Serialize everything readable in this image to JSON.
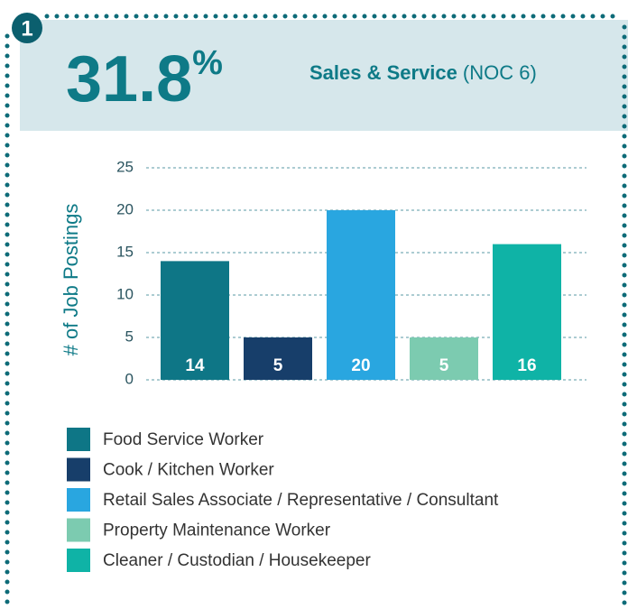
{
  "header": {
    "badge": "1",
    "value": "31.8",
    "unit": "%",
    "title": "Sales & Service",
    "code": "(NOC 6)"
  },
  "chart_data": {
    "type": "bar",
    "ylabel": "# of Job Postings",
    "categories": [
      "Food Service Worker",
      "Cook / Kitchen Worker",
      "Retail Sales Associate / Representative / Consultant",
      "Property Maintenance Worker",
      "Cleaner / Custodian / Housekeeper"
    ],
    "values": [
      14,
      5,
      20,
      5,
      16
    ],
    "colors": [
      "#0e7686",
      "#173e6a",
      "#29a6e0",
      "#7ccbb0",
      "#0fb3a6"
    ],
    "ylim": [
      0,
      25
    ],
    "yticks": [
      0,
      5,
      10,
      15,
      20,
      25
    ],
    "grid": true
  }
}
